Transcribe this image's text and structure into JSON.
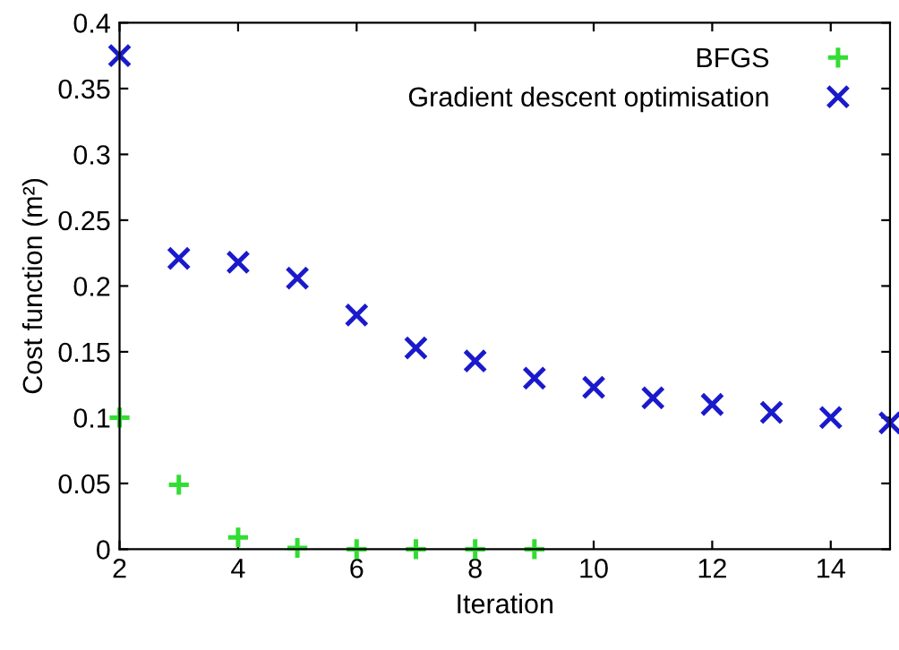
{
  "chart_data": {
    "type": "scatter",
    "xlabel": "Iteration",
    "ylabel": "Cost function (m²)",
    "legend": "top right",
    "grid": false,
    "xlim": [
      2,
      15
    ],
    "xticks": [
      2,
      4,
      6,
      8,
      10,
      12,
      14
    ],
    "ylim": [
      0,
      0.4
    ],
    "yticks": [
      0,
      0.05,
      0.1,
      0.15,
      0.2,
      0.25,
      0.3,
      0.35,
      0.4
    ],
    "series": [
      {
        "name": "BFGS",
        "color": "#33dd33",
        "marker": "plus",
        "x": [
          2,
          3,
          4,
          5,
          6,
          7,
          8,
          9
        ],
        "values": [
          0.1,
          0.049,
          0.009,
          0.001,
          0,
          0,
          0,
          0
        ]
      },
      {
        "name": "Gradient descent optimisation",
        "color": "#1a1acc",
        "marker": "cross",
        "x": [
          2,
          3,
          4,
          5,
          6,
          7,
          8,
          9,
          10,
          11,
          12,
          13,
          14,
          15
        ],
        "values": [
          0.375,
          0.221,
          0.218,
          0.206,
          0.178,
          0.153,
          0.143,
          0.13,
          0.123,
          0.115,
          0.11,
          0.104,
          0.1,
          0.096
        ]
      }
    ]
  }
}
